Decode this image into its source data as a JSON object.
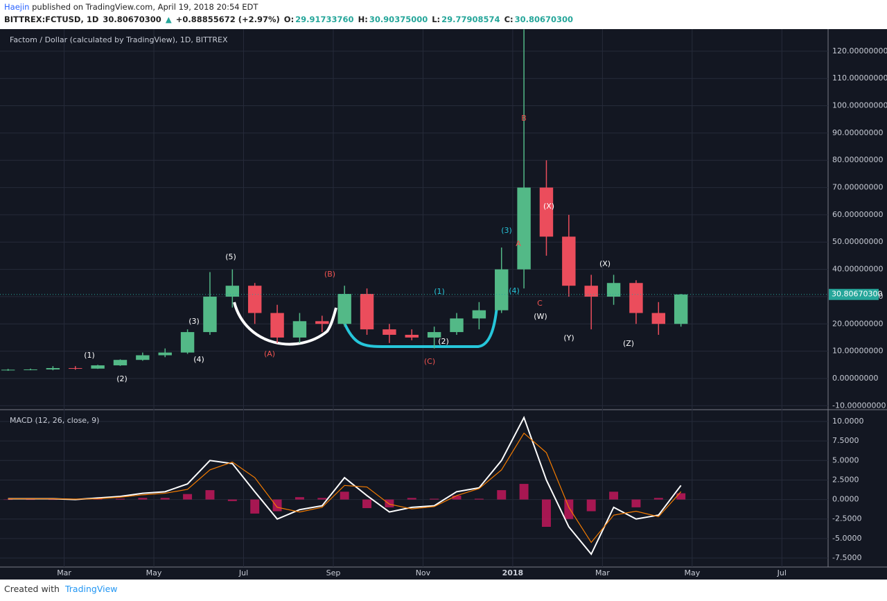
{
  "header": {
    "author": "Haejin",
    "published": "published on TradingView.com, April 19, 2018 20:54 EDT",
    "symbol": "BITTREX:FCTUSD, 1D",
    "price": "30.80670300",
    "arrow": "▲",
    "change": "+0.88855672 (+2.97%)",
    "o_label": "O:",
    "o_value": "29.91733760",
    "h_label": "H:",
    "h_value": "30.90375000",
    "l_label": "L:",
    "l_value": "29.77908574",
    "c_label": "C:",
    "c_value": "30.80670300"
  },
  "chart_data": [
    {
      "type": "candlestick",
      "title": "Factom / Dollar (calculated by TradingView), 1D, BITTREX",
      "x": [
        0.75,
        1.25,
        1.75,
        2.25,
        2.75,
        3.25,
        3.75,
        4.25,
        4.75,
        5.25,
        5.75,
        6.25,
        6.75,
        7.25,
        7.75,
        8.25,
        8.75,
        9.25,
        9.75,
        10.25,
        10.75,
        11.25,
        11.75,
        12.25,
        12.75,
        13.25,
        13.75,
        14.25,
        14.75,
        15.25,
        15.75
      ],
      "open": [
        3,
        3.2,
        3.3,
        3.8,
        3.6,
        4.8,
        6.8,
        8.5,
        9.5,
        17,
        30,
        34,
        24,
        15,
        21,
        20,
        31,
        18,
        16,
        15,
        17,
        22,
        25,
        40,
        70,
        52,
        34,
        30,
        35,
        24,
        20
      ],
      "high": [
        3.5,
        3.6,
        4.5,
        4.5,
        5,
        7,
        9.5,
        11,
        18,
        39,
        40,
        35,
        27,
        24,
        23,
        34,
        33,
        20,
        18,
        19,
        24,
        28,
        48,
        128,
        80,
        60,
        38,
        38,
        36,
        28,
        31
      ],
      "low": [
        2.8,
        3.0,
        3.0,
        3.2,
        3.5,
        4.6,
        6.5,
        7.8,
        9,
        16,
        26,
        20,
        13,
        13,
        17,
        19,
        16,
        13,
        14,
        11,
        16,
        18,
        24,
        33,
        45,
        30,
        18,
        27,
        20,
        16,
        19
      ],
      "close": [
        3.2,
        3.3,
        3.8,
        3.6,
        4.8,
        6.8,
        8.5,
        9.5,
        17,
        30,
        34,
        24,
        15,
        21,
        20,
        31,
        18,
        16,
        15,
        17,
        22,
        25,
        40,
        70,
        52,
        34,
        30,
        35,
        24,
        20,
        30.8
      ],
      "up_color": "#53b987",
      "down_color": "#eb4d5c",
      "last_price": {
        "value": 30.8067,
        "label": "30.80670300"
      },
      "last_color": "#26a69a",
      "xlim": [
        0.57,
        19.03
      ],
      "ylim": [
        -11.2,
        128.1
      ],
      "yticks": [
        {
          "value": 120,
          "label": "120.00000000"
        },
        {
          "value": 110,
          "label": "110.00000000"
        },
        {
          "value": 100,
          "label": "100.00000000"
        },
        {
          "value": 90,
          "label": "90.00000000"
        },
        {
          "value": 80,
          "label": "80.00000000"
        },
        {
          "value": 70,
          "label": "70.00000000"
        },
        {
          "value": 60,
          "label": "60.00000000"
        },
        {
          "value": 50,
          "label": "50.00000000"
        },
        {
          "value": 40,
          "label": "40.00000000"
        },
        {
          "value": 30,
          "label": "30.00000000"
        },
        {
          "value": 20,
          "label": "20.00000000"
        },
        {
          "value": 10,
          "label": "10.00000000"
        },
        {
          "value": 0,
          "label": "0.00000000"
        },
        {
          "value": -10,
          "label": "-10.00000000"
        }
      ],
      "grid": true,
      "annotations": [
        {
          "text": "(1)",
          "color": "#ffffff"
        },
        {
          "text": "(2)",
          "color": "#ffffff"
        },
        {
          "text": "(3)",
          "color": "#ffffff"
        },
        {
          "text": "(4)",
          "color": "#ffffff"
        },
        {
          "text": "(5)",
          "color": "#ffffff"
        },
        {
          "text": "(A)",
          "color": "#ef5350"
        },
        {
          "text": "(B)",
          "color": "#ef5350"
        },
        {
          "text": "(C)",
          "color": "#ef5350"
        },
        {
          "text": "(1)",
          "color": "#26c6da"
        },
        {
          "text": "(2)",
          "color": "#ffffff"
        },
        {
          "text": "(3)",
          "color": "#26c6da"
        },
        {
          "text": "A",
          "color": "#ef5350"
        },
        {
          "text": "(4)",
          "color": "#26c6da"
        },
        {
          "text": "B",
          "color": "#ef5350"
        },
        {
          "text": "C",
          "color": "#ef5350"
        },
        {
          "text": "(W)",
          "color": "#ffffff"
        },
        {
          "text": "(X)",
          "color": "#ffffff"
        },
        {
          "text": "(Y)",
          "color": "#ffffff"
        },
        {
          "text": "(X)",
          "color": "#ffffff"
        },
        {
          "text": "(Z)",
          "color": "#ffffff"
        }
      ]
    },
    {
      "type": "macd",
      "title": "MACD (12, 26, close, 9)",
      "x": [
        0.75,
        1.25,
        1.75,
        2.25,
        2.75,
        3.25,
        3.75,
        4.25,
        4.75,
        5.25,
        5.75,
        6.25,
        6.75,
        7.25,
        7.75,
        8.25,
        8.75,
        9.25,
        9.75,
        10.25,
        10.75,
        11.25,
        11.75,
        12.25,
        12.75,
        13.25,
        13.75,
        14.25,
        14.75,
        15.25,
        15.75
      ],
      "series": [
        {
          "color": "#ffffff",
          "values": [
            0.1,
            0.1,
            0.1,
            0,
            0.2,
            0.4,
            0.8,
            1.0,
            2.0,
            5.0,
            4.6,
            1.0,
            -2.5,
            -1.3,
            -0.8,
            2.8,
            0.5,
            -1.6,
            -1.0,
            -0.8,
            1.0,
            1.5,
            5.0,
            10.5,
            2.5,
            -3.5,
            -7.0,
            -1.0,
            -2.5,
            -2.0,
            1.8
          ]
        },
        {
          "color": "#f57c00",
          "values": [
            0.1,
            0.1,
            0.1,
            0.05,
            0.1,
            0.3,
            0.6,
            0.8,
            1.3,
            3.8,
            4.8,
            2.8,
            -1.0,
            -1.6,
            -1.0,
            1.8,
            1.6,
            -0.6,
            -1.2,
            -0.9,
            0.5,
            1.4,
            3.8,
            8.5,
            6.0,
            -1.0,
            -5.5,
            -2.0,
            -1.5,
            -2.2,
            1.0
          ]
        }
      ],
      "histogram": {
        "color": "#c2185b",
        "values": [
          0,
          0,
          0,
          -0.05,
          0.1,
          0.1,
          0.2,
          0.2,
          0.7,
          1.2,
          -0.2,
          -1.8,
          -1.5,
          0.3,
          0.2,
          1.0,
          -1.1,
          -1.0,
          0.2,
          0.1,
          0.5,
          0.1,
          1.2,
          2.0,
          -3.5,
          -2.5,
          -1.5,
          1.0,
          -1.0,
          0.2,
          0.8
        ]
      },
      "xlim": [
        0.57,
        19.03
      ],
      "ylim": [
        -8.65,
        11.42
      ],
      "yticks": [
        {
          "value": 10,
          "label": "10.0000"
        },
        {
          "value": 7.5,
          "label": "7.5000"
        },
        {
          "value": 5,
          "label": "5.0000"
        },
        {
          "value": 2.5,
          "label": "2.5000"
        },
        {
          "value": 0,
          "label": "0.0000"
        },
        {
          "value": -2.5,
          "label": "-2.5000"
        },
        {
          "value": -5,
          "label": "-5.0000"
        },
        {
          "value": -7.5,
          "label": "-7.5000"
        }
      ],
      "xticks": [
        {
          "value": 2,
          "label": "Mar"
        },
        {
          "value": 4,
          "label": "May"
        },
        {
          "value": 6,
          "label": "Jul"
        },
        {
          "value": 8,
          "label": "Sep"
        },
        {
          "value": 10,
          "label": "Nov"
        },
        {
          "value": 12,
          "label": "2018"
        },
        {
          "value": 14,
          "label": "Mar"
        },
        {
          "value": 16,
          "label": "May"
        },
        {
          "value": 18,
          "label": "Jul"
        }
      ],
      "grid": true
    }
  ],
  "footer": {
    "text": "Created with",
    "brand": "TradingView"
  }
}
